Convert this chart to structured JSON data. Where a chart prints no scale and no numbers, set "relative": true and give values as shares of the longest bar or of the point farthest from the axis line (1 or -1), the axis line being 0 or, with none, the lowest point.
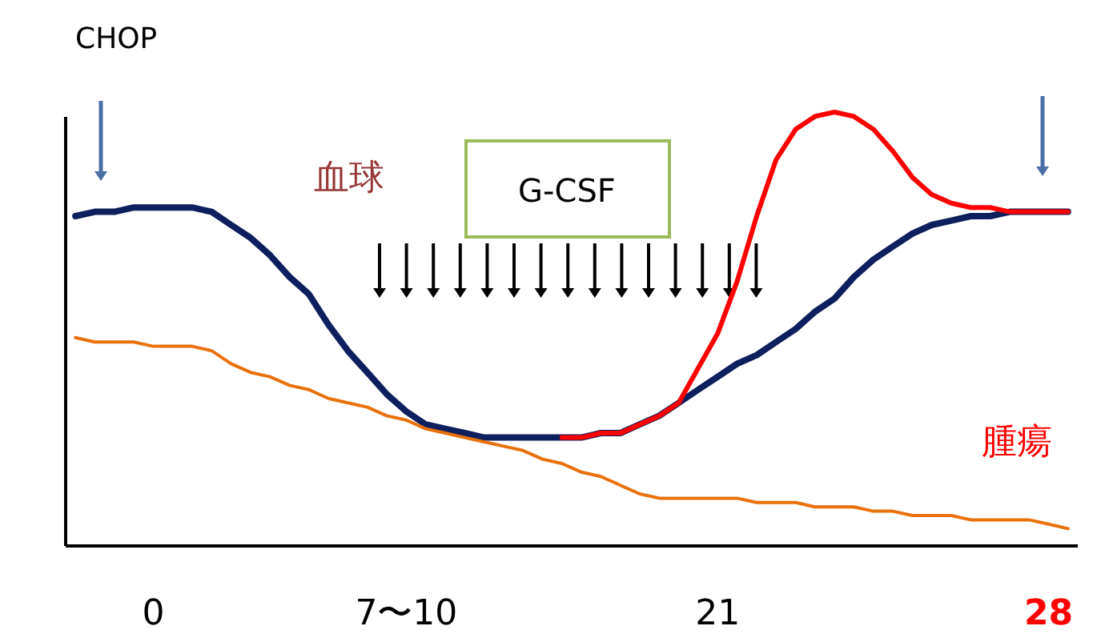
{
  "chart_data": {
    "type": "line",
    "relative": true,
    "categories": [
      null,
      null,
      null,
      null,
      "0",
      null,
      null,
      null,
      null,
      null,
      null,
      null,
      null,
      null,
      null,
      null,
      null,
      "7〜10",
      null,
      null,
      null,
      null,
      null,
      null,
      null,
      null,
      null,
      null,
      null,
      null,
      null,
      null,
      null,
      "21",
      null,
      null,
      null,
      null,
      null,
      null,
      null,
      null,
      null,
      null,
      null,
      null,
      null,
      null,
      null,
      null,
      "28",
      null
    ],
    "annotations": [
      "CHOP",
      "G-CSF",
      "血球",
      "腫瘍"
    ],
    "series": [
      {
        "color": "#0d1f5c",
        "values": [
          0.76,
          0.77,
          0.77,
          0.78,
          0.78,
          0.78,
          0.78,
          0.77,
          0.74,
          0.71,
          0.67,
          0.62,
          0.58,
          0.51,
          0.45,
          0.4,
          0.35,
          0.31,
          0.28,
          0.27,
          0.26,
          0.25,
          0.25,
          0.25,
          0.25,
          0.25,
          0.25,
          0.26,
          0.26,
          0.28,
          0.3,
          0.33,
          0.36,
          0.39,
          0.42,
          0.44,
          0.47,
          0.5,
          0.54,
          0.57,
          0.62,
          0.66,
          0.69,
          0.72,
          0.74,
          0.75,
          0.76,
          0.76,
          0.77,
          0.77,
          0.77,
          0.77
        ]
      },
      {
        "color": "#ff0000",
        "values": [
          null,
          null,
          null,
          null,
          null,
          null,
          null,
          null,
          null,
          null,
          null,
          null,
          null,
          null,
          null,
          null,
          null,
          null,
          null,
          null,
          null,
          null,
          null,
          null,
          null,
          0.25,
          0.25,
          0.26,
          0.26,
          0.28,
          0.3,
          0.33,
          0.41,
          0.49,
          0.61,
          0.76,
          0.89,
          0.96,
          0.99,
          1,
          0.99,
          0.96,
          0.91,
          0.85,
          0.81,
          0.79,
          0.78,
          0.78,
          0.77,
          0.77,
          0.77,
          0.77
        ]
      },
      {
        "color": "#e8710a",
        "values": [
          0.48,
          0.47,
          0.47,
          0.47,
          0.46,
          0.46,
          0.46,
          0.45,
          0.42,
          0.4,
          0.39,
          0.37,
          0.36,
          0.34,
          0.33,
          0.32,
          0.3,
          0.29,
          0.27,
          0.26,
          0.25,
          0.24,
          0.23,
          0.22,
          0.2,
          0.19,
          0.17,
          0.16,
          0.14,
          0.12,
          0.11,
          0.11,
          0.11,
          0.11,
          0.11,
          0.1,
          0.1,
          0.1,
          0.09,
          0.09,
          0.09,
          0.08,
          0.08,
          0.07,
          0.07,
          0.07,
          0.06,
          0.06,
          0.06,
          0.06,
          0.05,
          0.04
        ]
      }
    ]
  }
}
